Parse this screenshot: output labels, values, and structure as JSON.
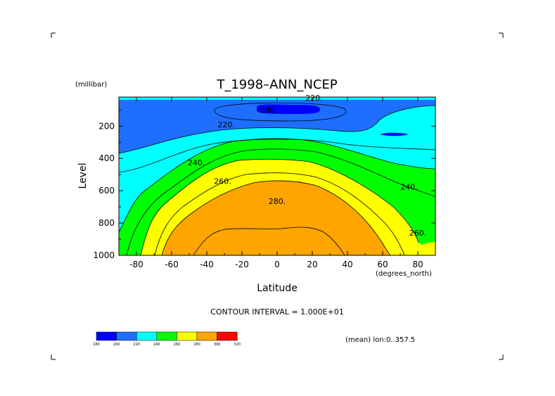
{
  "chart_data": {
    "type": "contour",
    "title": "T_1998–ANN_NCEP",
    "xlabel": "Latitude",
    "ylabel": "Level",
    "x_units": "(degrees_north)",
    "y_units": "(millibar)",
    "xlim": [
      -90,
      90
    ],
    "ylim": [
      1000,
      20
    ],
    "y_axis_inverted": true,
    "x_ticks": [
      -80,
      -60,
      -40,
      -20,
      0,
      20,
      40,
      60,
      80
    ],
    "y_ticks": [
      200,
      400,
      600,
      800,
      1000
    ],
    "contour_levels": [
      200,
      210,
      220,
      230,
      240,
      250,
      260,
      270,
      280,
      290
    ],
    "contour_labels": [
      {
        "text": "200",
        "x": -5,
        "y": 100
      },
      {
        "text": "220",
        "x": 21,
        "y": 25
      },
      {
        "text": "220",
        "x": -29,
        "y": 190
      },
      {
        "text": "240",
        "x": -46,
        "y": 425
      },
      {
        "text": "240",
        "x": 75,
        "y": 575
      },
      {
        "text": "260",
        "x": -31,
        "y": 540
      },
      {
        "text": "280",
        "x": 0,
        "y": 665
      },
      {
        "text": "260",
        "x": 80,
        "y": 860
      }
    ],
    "annotations": {
      "contour_interval": "CONTOUR INTERVAL = 1.000E+01",
      "mean": "(mean) lon:0..357.5"
    },
    "colorbar": {
      "bounds": [
        "180",
        "200",
        "220",
        "240",
        "260",
        "280",
        "300",
        "320"
      ],
      "colors": [
        "#0000ff",
        "#1e6eff",
        "#00ffff",
        "#00ff00",
        "#ffff00",
        "#ffa500",
        "#ff0000"
      ]
    },
    "grid": false,
    "legend": "colorbar bottom-left"
  }
}
